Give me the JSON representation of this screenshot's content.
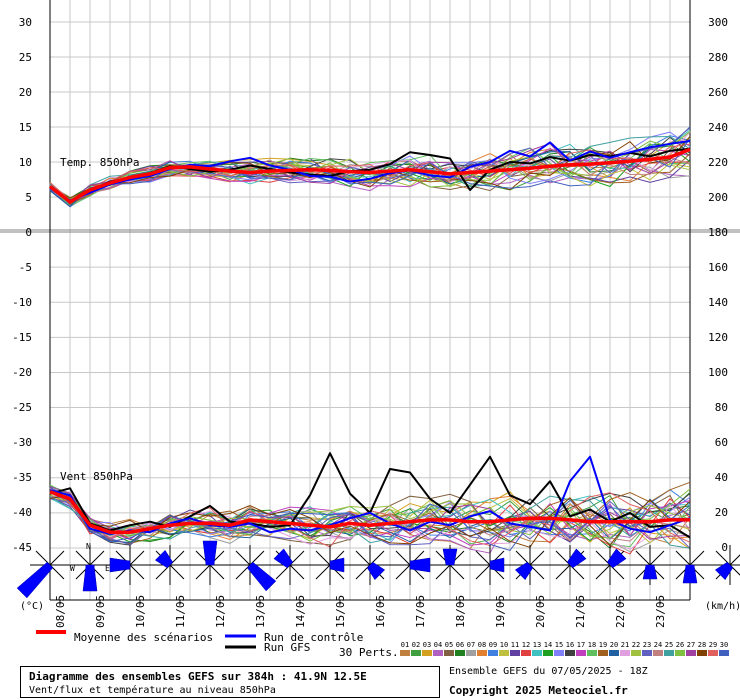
{
  "chart_data": {
    "type": "line",
    "temp_panel": {
      "label": "Temp. 850hPa",
      "left_ticks": [
        "30",
        "25",
        "20",
        "15",
        "10",
        "5",
        "0"
      ],
      "right_ticks": [
        "300",
        "280",
        "260",
        "240",
        "220",
        "200"
      ],
      "ylim": [
        0,
        30
      ]
    },
    "wind_panel": {
      "label": "Vent 850hPa",
      "left_ticks": [
        "-5",
        "-10",
        "-15",
        "-20",
        "-25",
        "-30",
        "-35",
        "-40",
        "-45"
      ],
      "right_ticks": [
        "180",
        "160",
        "140",
        "120",
        "100",
        "80",
        "60",
        "40",
        "20",
        "0"
      ],
      "ylim": [
        0,
        180
      ]
    },
    "left_unit": "(°C)",
    "right_unit": "(km/h)",
    "x_dates": [
      "08/05",
      "09/05",
      "10/05",
      "11/05",
      "12/05",
      "13/05",
      "14/05",
      "15/05",
      "16/05",
      "17/05",
      "18/05",
      "19/05",
      "20/05",
      "21/05",
      "22/05",
      "23/05"
    ],
    "x_hours": [
      6,
      30,
      54,
      78,
      102,
      126,
      150,
      174,
      198,
      222,
      246,
      270,
      294,
      318,
      342,
      366
    ],
    "xlim": [
      0,
      384
    ],
    "mean_temp": {
      "name": "Moyenne des scénarios",
      "x": [
        0,
        12,
        24,
        36,
        48,
        60,
        72,
        84,
        96,
        108,
        120,
        132,
        144,
        156,
        168,
        180,
        192,
        204,
        216,
        228,
        240,
        252,
        264,
        276,
        288,
        300,
        312,
        324,
        336,
        348,
        360,
        372,
        384
      ],
      "y": [
        6.5,
        4.3,
        6.0,
        7.0,
        7.8,
        8.3,
        9.2,
        9.3,
        9.0,
        8.7,
        8.5,
        8.7,
        8.8,
        8.9,
        8.8,
        8.6,
        8.5,
        8.7,
        8.9,
        8.6,
        8.3,
        8.5,
        8.7,
        8.9,
        9.1,
        9.4,
        9.6,
        9.7,
        9.9,
        10.1,
        10.4,
        10.7,
        11.8
      ]
    },
    "control_temp": {
      "name": "Run de contrôle",
      "x": [
        0,
        12,
        24,
        36,
        48,
        60,
        72,
        84,
        96,
        108,
        120,
        132,
        144,
        156,
        168,
        180,
        192,
        204,
        216,
        228,
        240,
        252,
        264,
        276,
        288,
        300,
        312,
        324,
        336,
        348,
        360,
        372,
        384
      ],
      "y": [
        6.3,
        4.5,
        5.6,
        6.8,
        7.5,
        8.0,
        9.0,
        9.6,
        9.4,
        10.1,
        10.6,
        9.5,
        8.9,
        8.0,
        7.9,
        7.2,
        7.6,
        8.4,
        8.8,
        8.1,
        7.8,
        9.3,
        10.0,
        11.6,
        10.8,
        12.8,
        10.2,
        11.5,
        10.6,
        11.4,
        12.1,
        12.6,
        13.0
      ]
    },
    "gfs_temp": {
      "name": "Run GFS",
      "x": [
        0,
        12,
        24,
        36,
        48,
        60,
        72,
        84,
        96,
        108,
        120,
        132,
        144,
        156,
        168,
        180,
        192,
        204,
        216,
        228,
        240,
        252,
        264,
        276,
        288,
        300,
        312,
        324,
        336,
        348,
        360,
        372,
        384
      ],
      "y": [
        6.4,
        4.2,
        5.9,
        7.2,
        7.6,
        8.4,
        9.4,
        9.0,
        8.6,
        8.9,
        9.5,
        9.0,
        8.5,
        8.2,
        8.0,
        8.7,
        8.9,
        9.7,
        11.4,
        11.0,
        10.5,
        6.0,
        8.9,
        10.0,
        9.8,
        10.7,
        10.2,
        11.0,
        10.8,
        11.3,
        10.8,
        11.6,
        11.9
      ]
    },
    "mean_wind": {
      "name": "Moyenne des scénarios",
      "x": [
        0,
        12,
        24,
        36,
        48,
        60,
        72,
        84,
        96,
        108,
        120,
        132,
        144,
        156,
        168,
        180,
        192,
        204,
        216,
        228,
        240,
        252,
        264,
        276,
        288,
        300,
        312,
        324,
        336,
        348,
        360,
        372,
        384
      ],
      "y": [
        32,
        28,
        13,
        9,
        9,
        11,
        13,
        14,
        14,
        13,
        16,
        15,
        14,
        13,
        12,
        14,
        13,
        14,
        15,
        16,
        16,
        15,
        15,
        16,
        17,
        17,
        16,
        15,
        15,
        15,
        15,
        16,
        16
      ]
    },
    "control_wind": {
      "name": "Run de contrôle",
      "x": [
        0,
        12,
        24,
        36,
        48,
        60,
        72,
        84,
        96,
        108,
        120,
        132,
        144,
        156,
        168,
        180,
        192,
        204,
        216,
        228,
        240,
        252,
        264,
        276,
        288,
        300,
        312,
        324,
        336,
        348,
        360,
        372,
        384
      ],
      "y": [
        33,
        30,
        11,
        8,
        10,
        9,
        14,
        17,
        13,
        12,
        14,
        9,
        11,
        10,
        13,
        17,
        20,
        14,
        10,
        15,
        13,
        18,
        21,
        14,
        12,
        10,
        38,
        52,
        16,
        11,
        9,
        13,
        17
      ]
    },
    "gfs_wind": {
      "name": "Run GFS",
      "x": [
        0,
        12,
        24,
        36,
        48,
        60,
        72,
        84,
        96,
        108,
        120,
        132,
        144,
        156,
        168,
        180,
        192,
        204,
        216,
        228,
        240,
        252,
        264,
        276,
        288,
        300,
        312,
        324,
        336,
        348,
        360,
        372,
        384
      ],
      "y": [
        31,
        34,
        14,
        10,
        13,
        15,
        12,
        18,
        24,
        15,
        14,
        12,
        13,
        30,
        54,
        31,
        20,
        45,
        43,
        28,
        20,
        36,
        52,
        30,
        25,
        38,
        18,
        22,
        15,
        20,
        12,
        13,
        6
      ]
    },
    "perturbations_label": "30 Perts.",
    "perturbation_names": [
      "01",
      "02",
      "03",
      "04",
      "05",
      "06",
      "07",
      "08",
      "09",
      "10",
      "11",
      "12",
      "13",
      "14",
      "15",
      "16",
      "17",
      "18",
      "19",
      "20",
      "21",
      "22",
      "23",
      "24",
      "25",
      "26",
      "27",
      "28",
      "29",
      "30"
    ],
    "perturbation_colors": [
      "#c08040",
      "#40a040",
      "#d4a020",
      "#b060c0",
      "#806040",
      "#208020",
      "#a0a0a0",
      "#e08030",
      "#4080e0",
      "#c0c040",
      "#6040a0",
      "#e04040",
      "#40c0c0",
      "#20a020",
      "#8080ff",
      "#404040",
      "#c040c0",
      "#60c060",
      "#a06020",
      "#2060a0",
      "#e0a0e0",
      "#a0c040",
      "#6060c0",
      "#c08080",
      "#40a0a0",
      "#80c040",
      "#a040a0",
      "#804000",
      "#e06060",
      "#4060c0"
    ],
    "wind_roses": [
      {
        "d": "SW",
        "s": 40
      },
      {
        "d": "S",
        "s": 26
      },
      {
        "d": "W",
        "s": 20
      },
      {
        "d": "NW",
        "s": 14
      },
      {
        "d": "N",
        "s": 24
      },
      {
        "d": "SE",
        "s": 30
      },
      {
        "d": "NW",
        "s": 16
      },
      {
        "d": "E",
        "s": 14
      },
      {
        "d": "SE",
        "s": 14
      },
      {
        "d": "E",
        "s": 20
      },
      {
        "d": "N",
        "s": 16
      },
      {
        "d": "E",
        "s": 14
      },
      {
        "d": "SW",
        "s": 14
      },
      {
        "d": "NE",
        "s": 16
      },
      {
        "d": "NE",
        "s": 16
      },
      {
        "d": "S",
        "s": 14
      },
      {
        "d": "S",
        "s": 18
      },
      {
        "d": "SW",
        "s": 14
      }
    ],
    "legend": {
      "mean": "Moyenne des scénarios",
      "control": "Run de contrôle",
      "gfs": "Run GFS",
      "mean_color": "#ff0000",
      "control_color": "#0000ff",
      "gfs_color": "#000000"
    }
  },
  "info": {
    "title": "Diagramme des ensembles GEFS sur 384h : 41.9N 12.5E",
    "subtitle": "Vent/flux et température au niveau 850hPa",
    "run": "Ensemble GEFS du 07/05/2025 - 18Z",
    "copyright": "Copyright 2025 Meteociel.fr"
  }
}
